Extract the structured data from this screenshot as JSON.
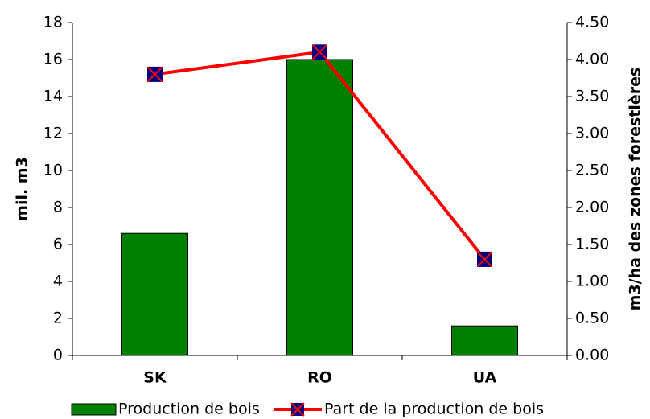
{
  "chart_data": {
    "type": "bar_line",
    "categories": [
      "SK",
      "RO",
      "UA"
    ],
    "series": [
      {
        "name": "Production de bois",
        "color": "#008000",
        "values": [
          6.6,
          16,
          1.6
        ],
        "type": "bar"
      },
      {
        "name": "Part de la production de bois",
        "color": "#ff0000",
        "marker_color": "#000080",
        "values": [
          3.8,
          4.1,
          1.3
        ],
        "type": "line",
        "axis": "y2"
      }
    ],
    "ylabel": "mil. m3",
    "y2label": "m3/ha des zones forestières",
    "ylim": [
      0,
      18
    ],
    "yticks": [
      0,
      2,
      4,
      6,
      8,
      10,
      12,
      14,
      16,
      18
    ],
    "y2lim": [
      0,
      4.5
    ],
    "y2ticks": [
      {
        "value": 0,
        "label": "0.00"
      },
      {
        "value": 0.5,
        "label": "0.50"
      },
      {
        "value": 1,
        "label": "1.00"
      },
      {
        "value": 1.5,
        "label": "1.50"
      },
      {
        "value": 2,
        "label": "2.00"
      },
      {
        "value": 2.5,
        "label": "2.50"
      },
      {
        "value": 3,
        "label": "3.00"
      },
      {
        "value": 3.5,
        "label": "3.50"
      },
      {
        "value": 4,
        "label": "4.00"
      },
      {
        "value": 4.5,
        "label": "4.50"
      }
    ],
    "legend": "bottom"
  }
}
